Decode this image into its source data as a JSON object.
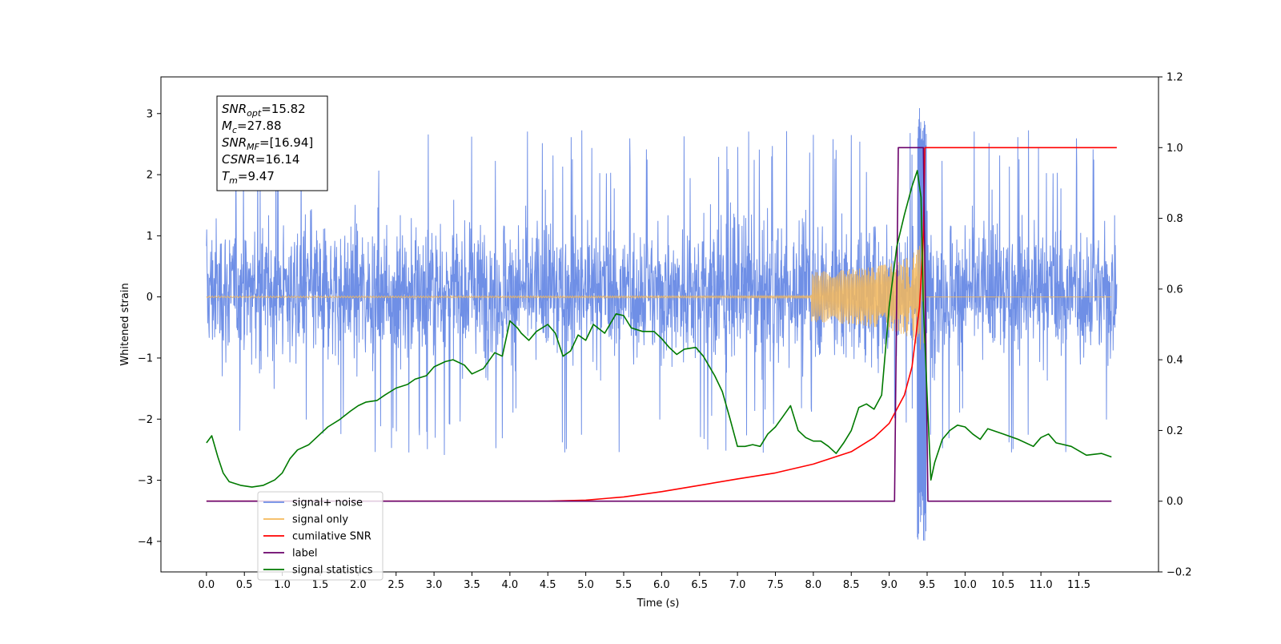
{
  "chart_data": {
    "type": "line",
    "xlabel": "Time (s)",
    "ylabel": "Whitened strain",
    "xlim": [
      -0.6,
      12.55
    ],
    "ylim": [
      -4.5,
      3.6
    ],
    "y2lim": [
      -0.2,
      1.2
    ],
    "x_ticks": [
      "0.0",
      "0.5",
      "1.0",
      "1.5",
      "2.0",
      "2.5",
      "3.0",
      "3.5",
      "4.0",
      "4.5",
      "5.0",
      "5.5",
      "6.0",
      "6.5",
      "7.0",
      "7.5",
      "8.0",
      "8.5",
      "9.0",
      "9.5",
      "10.0",
      "10.5",
      "11.0",
      "11.5"
    ],
    "y_ticks": [
      "−4",
      "−3",
      "−2",
      "−1",
      "0",
      "1",
      "2",
      "3"
    ],
    "y2_ticks": [
      "−0.2",
      "0.0",
      "0.2",
      "0.4",
      "0.6",
      "0.8",
      "1.0",
      "1.2"
    ],
    "grid": false,
    "legend_position": "bottom-left",
    "colors": {
      "signal_noise": "#6f8fe6",
      "signal_only": "#f5b85a",
      "cumulative_snr": "#ff0000",
      "label": "#6a006a",
      "signal_statistics": "#007a00"
    },
    "annotation_box": {
      "lines": [
        {
          "base": "SNR",
          "sub": "opt",
          "rest": "=15.82"
        },
        {
          "base": "M",
          "sub": "c",
          "rest": "=27.88"
        },
        {
          "base": "SNR",
          "sub": "MF",
          "rest": "=[16.94]"
        },
        {
          "base": "CSNR",
          "sub": "",
          "rest": "=16.14"
        },
        {
          "base": "T",
          "sub": "m",
          "rest": "=9.47"
        }
      ]
    },
    "series": [
      {
        "name": "signal+ noise",
        "axis": "left",
        "kind": "noise_band",
        "x_range": [
          0.0,
          12.0
        ],
        "typical_envelope": [
          -1.5,
          1.8
        ],
        "extreme_envelope": [
          -2.6,
          2.75
        ],
        "peak_x": 9.43,
        "peak_values": [
          -4.1,
          3.28
        ]
      },
      {
        "name": "signal only",
        "axis": "left",
        "kind": "chirp",
        "x_range": [
          0.0,
          9.5
        ],
        "peak_x": 9.47,
        "peak_amplitude": 1.2
      },
      {
        "name": "cumilative SNR",
        "axis": "right",
        "x": [
          0.0,
          4.5,
          5.0,
          5.5,
          6.0,
          6.5,
          7.0,
          7.5,
          8.0,
          8.5,
          8.8,
          9.0,
          9.2,
          9.3,
          9.4,
          9.45,
          9.47,
          9.5,
          12.0
        ],
        "values": [
          0.0,
          0.0,
          0.003,
          0.012,
          0.027,
          0.045,
          0.063,
          0.08,
          0.105,
          0.14,
          0.18,
          0.22,
          0.3,
          0.38,
          0.55,
          0.75,
          1.0,
          1.0,
          1.0
        ]
      },
      {
        "name": "label",
        "axis": "right",
        "x": [
          0.0,
          9.07,
          9.12,
          9.45,
          9.51,
          11.93
        ],
        "values": [
          0.0,
          0.0,
          1.0,
          1.0,
          0.0,
          0.0
        ]
      },
      {
        "name": "signal statistics",
        "axis": "right",
        "x": [
          0.0,
          0.07,
          0.15,
          0.22,
          0.3,
          0.45,
          0.6,
          0.75,
          0.9,
          1.0,
          1.1,
          1.2,
          1.35,
          1.5,
          1.6,
          1.75,
          1.9,
          2.0,
          2.1,
          2.25,
          2.35,
          2.5,
          2.65,
          2.75,
          2.9,
          3.0,
          3.15,
          3.25,
          3.4,
          3.5,
          3.65,
          3.8,
          3.9,
          4.0,
          4.1,
          4.15,
          4.25,
          4.35,
          4.5,
          4.6,
          4.7,
          4.8,
          4.9,
          5.0,
          5.1,
          5.25,
          5.4,
          5.5,
          5.6,
          5.75,
          5.9,
          6.0,
          6.1,
          6.2,
          6.3,
          6.45,
          6.55,
          6.7,
          6.8,
          6.9,
          7.0,
          7.1,
          7.2,
          7.3,
          7.4,
          7.5,
          7.6,
          7.7,
          7.8,
          7.9,
          8.0,
          8.1,
          8.2,
          8.3,
          8.4,
          8.5,
          8.6,
          8.7,
          8.8,
          8.9,
          9.0,
          9.1,
          9.2,
          9.3,
          9.37,
          9.42,
          9.45,
          9.5,
          9.55,
          9.6,
          9.7,
          9.8,
          9.9,
          10.0,
          10.1,
          10.2,
          10.3,
          10.5,
          10.7,
          10.9,
          11.0,
          11.1,
          11.2,
          11.4,
          11.6,
          11.8,
          11.93
        ],
        "values": [
          0.165,
          0.185,
          0.125,
          0.08,
          0.055,
          0.045,
          0.04,
          0.045,
          0.06,
          0.08,
          0.12,
          0.145,
          0.16,
          0.19,
          0.21,
          0.23,
          0.255,
          0.27,
          0.28,
          0.285,
          0.3,
          0.32,
          0.33,
          0.345,
          0.355,
          0.38,
          0.395,
          0.4,
          0.385,
          0.36,
          0.375,
          0.42,
          0.41,
          0.51,
          0.49,
          0.475,
          0.455,
          0.48,
          0.5,
          0.475,
          0.41,
          0.425,
          0.47,
          0.455,
          0.5,
          0.475,
          0.53,
          0.525,
          0.49,
          0.48,
          0.48,
          0.46,
          0.435,
          0.415,
          0.43,
          0.435,
          0.41,
          0.355,
          0.31,
          0.235,
          0.155,
          0.155,
          0.16,
          0.155,
          0.19,
          0.21,
          0.24,
          0.27,
          0.2,
          0.18,
          0.17,
          0.17,
          0.155,
          0.135,
          0.165,
          0.2,
          0.265,
          0.275,
          0.26,
          0.3,
          0.55,
          0.72,
          0.81,
          0.89,
          0.935,
          0.86,
          0.55,
          0.3,
          0.06,
          0.11,
          0.175,
          0.2,
          0.215,
          0.21,
          0.19,
          0.175,
          0.205,
          0.19,
          0.175,
          0.155,
          0.18,
          0.19,
          0.165,
          0.155,
          0.13,
          0.135,
          0.125
        ]
      }
    ]
  }
}
